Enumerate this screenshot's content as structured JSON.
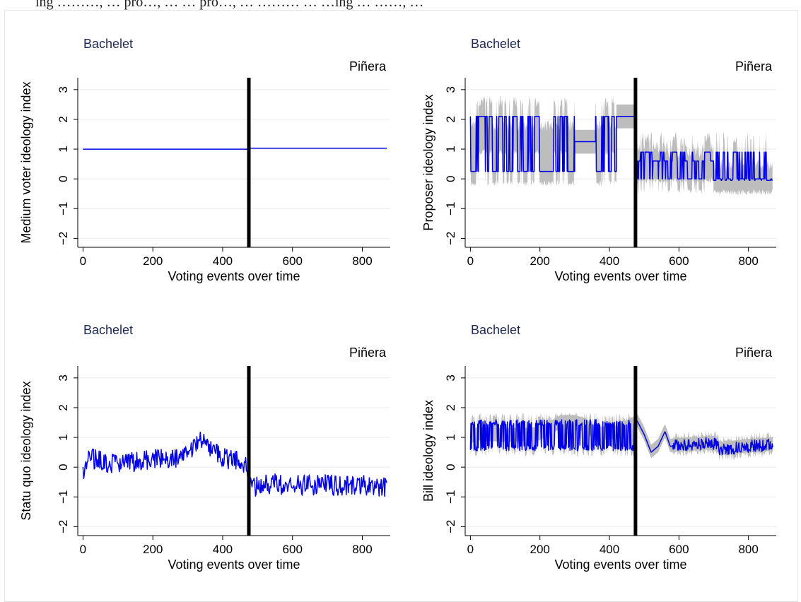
{
  "header_fragment": "ing  ………, …  pro…, … …  pro…, … ……… …  …ing … ……, …",
  "chart_data": [
    {
      "type": "line",
      "panel": "top-left",
      "ylabel": "Medium voter ideology index",
      "xlabel": "Voting events over time",
      "label_left": "Bachelet",
      "label_right": "Piñera",
      "xlim": [
        -15,
        880
      ],
      "ylim": [
        -2.3,
        3.4
      ],
      "xticks": [
        "0",
        "200",
        "400",
        "600",
        "800"
      ],
      "yticks": [
        "−2",
        "−1",
        "0",
        "1",
        "2",
        "3"
      ],
      "divider_x": 475,
      "series": [
        {
          "name": "",
          "pattern": "flat",
          "segments": [
            [
              0,
              474,
              1.0
            ],
            [
              476,
              870,
              1.03
            ]
          ]
        }
      ]
    },
    {
      "type": "line",
      "panel": "top-right",
      "ylabel": "Proposer ideology index",
      "xlabel": "Voting events over time",
      "label_left": "Bachelet",
      "label_right": "Piñera",
      "xlim": [
        -15,
        880
      ],
      "ylim": [
        -2.3,
        3.4
      ],
      "xticks": [
        "0",
        "200",
        "400",
        "600",
        "800"
      ],
      "yticks": [
        "−2",
        "−1",
        "0",
        "1",
        "2",
        "3"
      ],
      "divider_x": 475,
      "series": [
        {
          "name": "",
          "pattern": "proposer",
          "regimes": [
            {
              "x": [
                0,
                120
              ],
              "levels": [
                2.1,
                0.25
              ],
              "center": 1.3
            },
            {
              "x": [
                120,
                300
              ],
              "levels": [
                2.1,
                0.25
              ],
              "center": 1.3
            },
            {
              "x": [
                300,
                360
              ],
              "flat": 1.25
            },
            {
              "x": [
                360,
                420
              ],
              "levels": [
                2.1,
                0.25
              ],
              "center": 1.3
            },
            {
              "x": [
                420,
                475
              ],
              "flat": 2.1
            },
            {
              "x": [
                475,
                700
              ],
              "levels": [
                0.9,
                0.6,
                0.0
              ],
              "center": 0.35
            },
            {
              "x": [
                700,
                870
              ],
              "levels": [
                0.0,
                0.9,
                -0.05
              ],
              "center": -0.05
            }
          ]
        }
      ]
    },
    {
      "type": "line",
      "panel": "bottom-left",
      "ylabel": "Statu quo ideology index",
      "xlabel": "Voting events over time",
      "label_left": "Bachelet",
      "label_right": "Piñera",
      "xlim": [
        -15,
        880
      ],
      "ylim": [
        -2.3,
        3.4
      ],
      "xticks": [
        "0",
        "200",
        "400",
        "600",
        "800"
      ],
      "yticks": [
        "−2",
        "−1",
        "0",
        "1",
        "2",
        "3"
      ],
      "divider_x": 475,
      "series": [
        {
          "name": "",
          "pattern": "noisy",
          "trend": [
            [
              0,
              -0.2
            ],
            [
              20,
              0.3
            ],
            [
              100,
              0.1
            ],
            [
              200,
              0.25
            ],
            [
              300,
              0.35
            ],
            [
              335,
              0.9
            ],
            [
              360,
              0.6
            ],
            [
              420,
              0.25
            ],
            [
              470,
              0.1
            ],
            [
              478,
              -0.7
            ],
            [
              520,
              -0.55
            ],
            [
              600,
              -0.6
            ],
            [
              700,
              -0.6
            ],
            [
              800,
              -0.6
            ],
            [
              870,
              -0.7
            ]
          ],
          "amplitude": 0.35
        }
      ]
    },
    {
      "type": "line",
      "panel": "bottom-right",
      "ylabel": "Bill ideology index",
      "xlabel": "Voting events over time",
      "label_left": "Bachelet",
      "label_right": "Piñera",
      "xlim": [
        -15,
        880
      ],
      "ylim": [
        -2.3,
        3.4
      ],
      "xticks": [
        "0",
        "200",
        "400",
        "600",
        "800"
      ],
      "yticks": [
        "−2",
        "−1",
        "0",
        "1",
        "2",
        "3"
      ],
      "divider_x": 475,
      "series": [
        {
          "name": "",
          "pattern": "bill",
          "points": [
            [
              0,
              1.0
            ],
            [
              20,
              1.1
            ],
            [
              100,
              1.05
            ],
            [
              200,
              1.1
            ],
            [
              260,
              1.5
            ],
            [
              300,
              1.5
            ],
            [
              330,
              1.4
            ],
            [
              360,
              1.1
            ],
            [
              420,
              1.15
            ],
            [
              470,
              1.45
            ],
            [
              480,
              1.55
            ],
            [
              500,
              1.1
            ],
            [
              520,
              0.5
            ],
            [
              540,
              0.7
            ],
            [
              560,
              1.2
            ],
            [
              575,
              0.7
            ],
            [
              620,
              0.75
            ],
            [
              700,
              0.8
            ],
            [
              720,
              0.6
            ],
            [
              800,
              0.7
            ],
            [
              870,
              0.75
            ]
          ],
          "amplitude": 0.35
        }
      ]
    }
  ],
  "colors": {
    "line": "#0000e6",
    "band": "#bdbdbd",
    "divider": "#000000",
    "grid": "#eaeaea",
    "label": "#1e2a52"
  }
}
